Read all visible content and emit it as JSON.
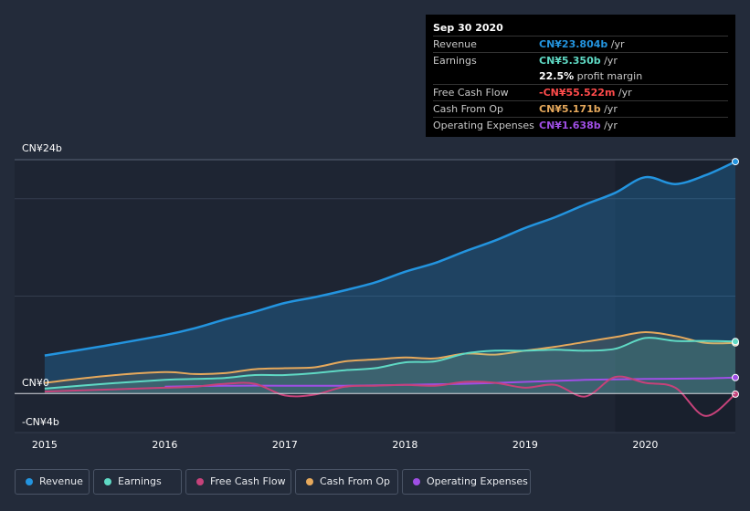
{
  "tooltip": {
    "date": "Sep 30 2020",
    "revenue_label": "Revenue",
    "revenue_value": "CN¥23.804b",
    "revenue_unit": " /yr",
    "earnings_label": "Earnings",
    "earnings_value": "CN¥5.350b",
    "earnings_unit": " /yr",
    "margin_value": "22.5%",
    "margin_label": " profit margin",
    "fcf_label": "Free Cash Flow",
    "fcf_value": "-CN¥55.522m",
    "fcf_unit": " /yr",
    "cfo_label": "Cash From Op",
    "cfo_value": "CN¥5.171b",
    "cfo_unit": " /yr",
    "opex_label": "Operating Expenses",
    "opex_value": "CN¥1.638b",
    "opex_unit": " /yr"
  },
  "legend": {
    "revenue": "Revenue",
    "earnings": "Earnings",
    "fcf": "Free Cash Flow",
    "cfo": "Cash From Op",
    "opex": "Operating Expenses"
  },
  "colors": {
    "revenue": "#2394df",
    "earnings": "#5fd9c4",
    "fcf": "#c6427a",
    "cfo": "#e6a95c",
    "opex": "#9f4fe5",
    "fcf_text": "#ff4b4b"
  },
  "chart_data": {
    "type": "area",
    "title": "",
    "xlabel": "",
    "ylabel": "",
    "unit": "CN¥ billions",
    "ylim": [
      -4,
      24
    ],
    "y_tick_labels": {
      "top": "CN¥24b",
      "zero": "CN¥0",
      "bottom": "-CN¥4b"
    },
    "x_tick_labels": [
      "2015",
      "2016",
      "2017",
      "2018",
      "2019",
      "2020"
    ],
    "x_ticks": [
      2015,
      2016,
      2017,
      2018,
      2019,
      2020
    ],
    "xlim": [
      2014.75,
      2020.75
    ],
    "highlight_start": 2019.75,
    "series": [
      {
        "key": "revenue",
        "name": "Revenue",
        "area": true,
        "x": [
          2015.0,
          2015.5,
          2016.0,
          2016.25,
          2016.5,
          2016.75,
          2017.0,
          2017.25,
          2017.5,
          2017.75,
          2018.0,
          2018.25,
          2018.5,
          2018.75,
          2019.0,
          2019.25,
          2019.5,
          2019.75,
          2020.0,
          2020.25,
          2020.5,
          2020.75
        ],
        "values": [
          3.9,
          4.9,
          6.0,
          6.7,
          7.6,
          8.4,
          9.3,
          9.9,
          10.6,
          11.4,
          12.5,
          13.4,
          14.6,
          15.7,
          17.0,
          18.1,
          19.4,
          20.6,
          22.2,
          21.5,
          22.4,
          23.8
        ]
      },
      {
        "key": "cfo",
        "name": "Cash From Op",
        "area": true,
        "x": [
          2015.0,
          2015.5,
          2016.0,
          2016.25,
          2016.5,
          2016.75,
          2017.0,
          2017.25,
          2017.5,
          2017.75,
          2018.0,
          2018.25,
          2018.5,
          2018.75,
          2019.0,
          2019.25,
          2019.5,
          2019.75,
          2020.0,
          2020.25,
          2020.5,
          2020.75
        ],
        "values": [
          1.1,
          1.8,
          2.2,
          2.0,
          2.1,
          2.5,
          2.6,
          2.7,
          3.3,
          3.5,
          3.7,
          3.6,
          4.1,
          4.0,
          4.4,
          4.8,
          5.3,
          5.8,
          6.3,
          5.9,
          5.2,
          5.2
        ]
      },
      {
        "key": "earnings",
        "name": "Earnings",
        "area": true,
        "x": [
          2015.0,
          2015.5,
          2016.0,
          2016.25,
          2016.5,
          2016.75,
          2017.0,
          2017.25,
          2017.5,
          2017.75,
          2018.0,
          2018.25,
          2018.5,
          2018.75,
          2019.0,
          2019.25,
          2019.5,
          2019.75,
          2020.0,
          2020.25,
          2020.5,
          2020.75
        ],
        "values": [
          0.5,
          1.0,
          1.4,
          1.5,
          1.6,
          1.9,
          1.9,
          2.1,
          2.4,
          2.6,
          3.2,
          3.3,
          4.1,
          4.4,
          4.4,
          4.5,
          4.4,
          4.6,
          5.7,
          5.4,
          5.4,
          5.35
        ]
      },
      {
        "key": "opex",
        "name": "Operating Expenses",
        "area": false,
        "x": [
          2016.0,
          2016.5,
          2017.0,
          2017.5,
          2018.0,
          2018.5,
          2019.0,
          2019.5,
          2020.0,
          2020.5,
          2020.75
        ],
        "values": [
          0.7,
          0.8,
          0.8,
          0.8,
          0.9,
          1.0,
          1.2,
          1.4,
          1.5,
          1.55,
          1.64
        ]
      },
      {
        "key": "fcf",
        "name": "Free Cash Flow",
        "area": false,
        "x": [
          2015.0,
          2015.5,
          2016.0,
          2016.25,
          2016.5,
          2016.75,
          2017.0,
          2017.25,
          2017.5,
          2017.75,
          2018.0,
          2018.25,
          2018.5,
          2018.75,
          2019.0,
          2019.25,
          2019.5,
          2019.75,
          2020.0,
          2020.25,
          2020.5,
          2020.75
        ],
        "values": [
          0.2,
          0.4,
          0.6,
          0.7,
          1.0,
          1.0,
          -0.2,
          -0.1,
          0.7,
          0.8,
          0.9,
          0.8,
          1.2,
          1.1,
          0.6,
          0.9,
          -0.3,
          1.7,
          1.1,
          0.6,
          -2.3,
          -0.06
        ]
      }
    ]
  }
}
